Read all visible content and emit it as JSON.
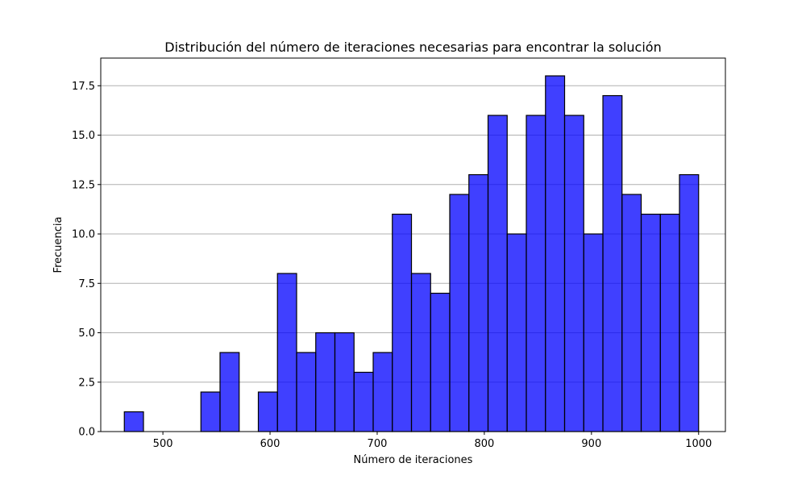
{
  "chart_data": {
    "type": "bar",
    "title": "Distribución del número de iteraciones necesarias para encontrar la solución",
    "xlabel": "Número de iteraciones",
    "ylabel": "Frecuencia",
    "xlim": [
      442,
      1025
    ],
    "ylim": [
      0,
      18.9
    ],
    "x_ticks": [
      500,
      600,
      700,
      800,
      900,
      1000
    ],
    "x_tick_labels": [
      "500",
      "600",
      "700",
      "800",
      "900",
      "1000"
    ],
    "y_ticks": [
      0,
      2.5,
      5,
      7.5,
      10,
      12.5,
      15,
      17.5
    ],
    "y_tick_labels": [
      "0.0",
      "2.5",
      "5.0",
      "7.5",
      "10.0",
      "12.5",
      "15.0",
      "17.5"
    ],
    "grid": "y",
    "bin_edges": [
      464,
      481.87,
      499.73,
      517.6,
      535.47,
      553.33,
      571.2,
      589.07,
      606.93,
      624.8,
      642.67,
      660.53,
      678.4,
      696.27,
      714.13,
      732,
      749.87,
      767.73,
      785.6,
      803.47,
      821.33,
      839.2,
      857.07,
      874.93,
      892.8,
      910.67,
      928.53,
      946.4,
      964.27,
      982.13,
      1000
    ],
    "values": [
      1,
      0,
      0,
      0,
      2,
      4,
      0,
      2,
      8,
      4,
      5,
      5,
      3,
      4,
      11,
      8,
      7,
      12,
      13,
      16,
      10,
      16,
      18,
      16,
      10,
      17,
      12,
      11,
      11,
      13
    ],
    "bar_color": "#0000ff",
    "bar_alpha": 0.75,
    "edge_color": "#000000",
    "grid_color": "#b0b0b0"
  }
}
